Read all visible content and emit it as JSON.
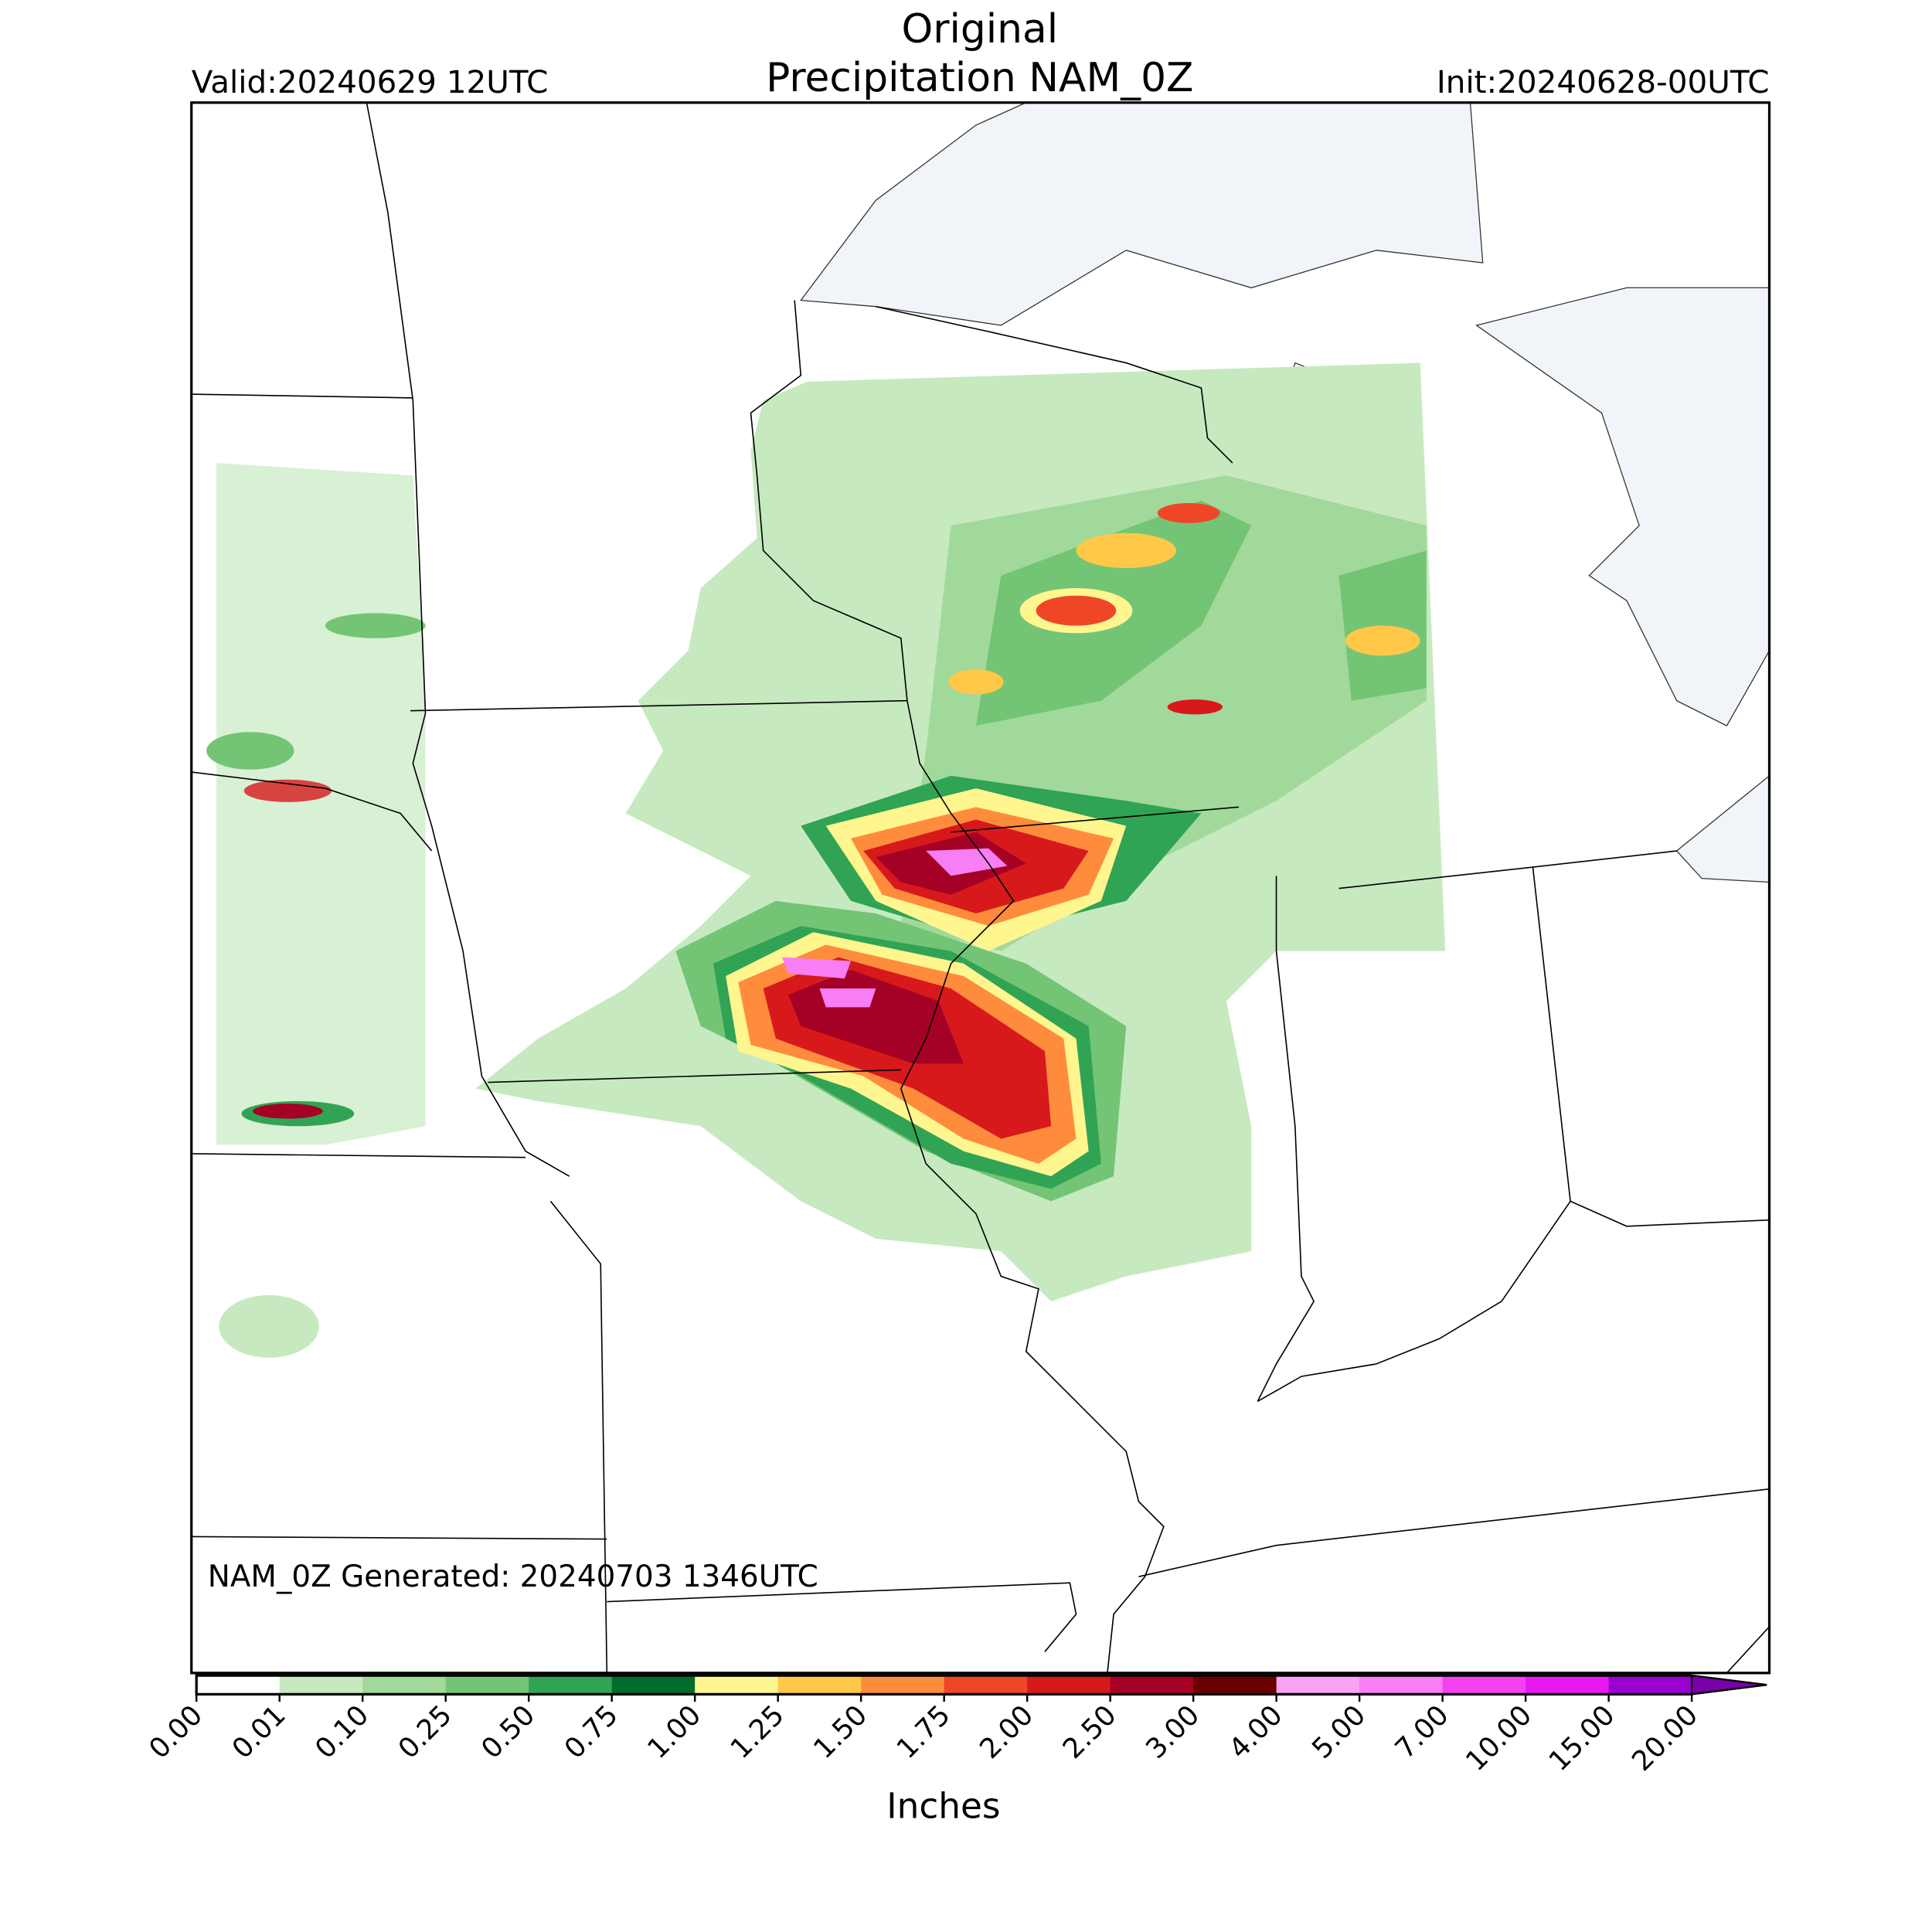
{
  "header": {
    "title_lines": [
      "Original",
      "Precipitation NAM_0Z"
    ],
    "valid": "Valid:20240629 12UTC",
    "init": "Init:20240628-00UTC"
  },
  "map": {
    "note": "NAM_0Z Generated: 20240703 1346UTC"
  },
  "colorbar": {
    "label": "Inches",
    "ticks": [
      {
        "value": 0,
        "label": "0.00"
      },
      {
        "value": 0.01,
        "label": "0.01"
      },
      {
        "value": 0.1,
        "label": "0.10"
      },
      {
        "value": 0.25,
        "label": "0.25"
      },
      {
        "value": 0.5,
        "label": "0.50"
      },
      {
        "value": 0.75,
        "label": "0.75"
      },
      {
        "value": 1,
        "label": "1.00"
      },
      {
        "value": 1.25,
        "label": "1.25"
      },
      {
        "value": 1.5,
        "label": "1.50"
      },
      {
        "value": 1.75,
        "label": "1.75"
      },
      {
        "value": 2,
        "label": "2.00"
      },
      {
        "value": 2.5,
        "label": "2.50"
      },
      {
        "value": 3,
        "label": "3.00"
      },
      {
        "value": 4,
        "label": "4.00"
      },
      {
        "value": 5,
        "label": "5.00"
      },
      {
        "value": 7,
        "label": "7.00"
      },
      {
        "value": 10,
        "label": "10.00"
      },
      {
        "value": 15,
        "label": "15.00"
      },
      {
        "value": 20,
        "label": "20.00"
      }
    ],
    "colors": [
      "#ffffff",
      "#c7e9c0",
      "#a1d99b",
      "#74c476",
      "#31a354",
      "#006d2c",
      "#fff68f",
      "#ffc848",
      "#ff8c3c",
      "#f04628",
      "#d7191c",
      "#a50026",
      "#6a0000",
      "#f9a3f5",
      "#f77ef4",
      "#f441f0",
      "#e619f0",
      "#9a00d0"
    ],
    "extend_color": "#7a00a8"
  }
}
